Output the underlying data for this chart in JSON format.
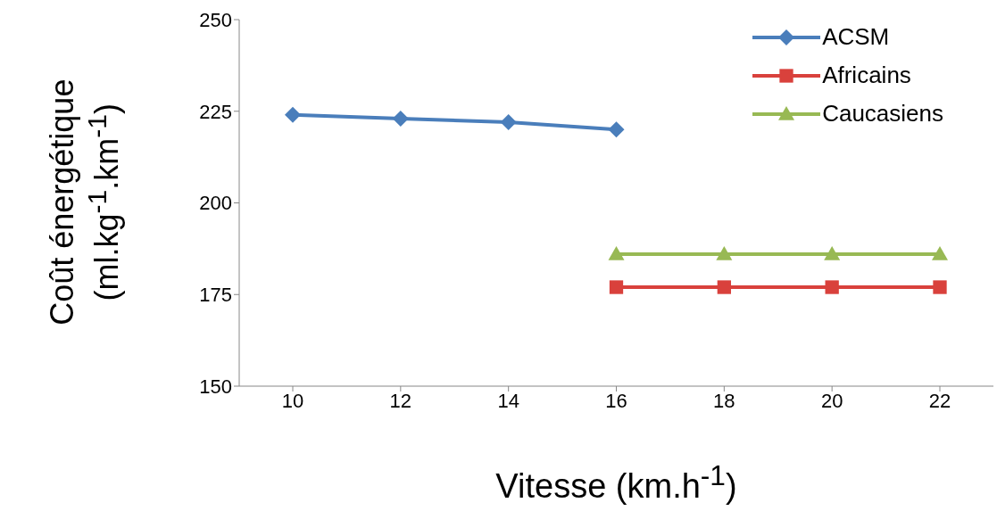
{
  "chart_data": {
    "type": "line",
    "xlabel": "Vitesse (km.h$^{-1}$)",
    "ylabel": "Coût énergétique (ml.kg$^{-1}$.km$^{-1}$)",
    "categories": [
      "10",
      "12",
      "14",
      "16",
      "18",
      "20",
      "22"
    ],
    "series": [
      {
        "name": "ACSM",
        "color": "#4a7ebb",
        "marker": "diamond",
        "values": [
          224,
          223,
          222,
          220,
          null,
          null,
          null
        ]
      },
      {
        "name": "Africains",
        "color": "#d9413c",
        "marker": "square",
        "values": [
          null,
          null,
          null,
          177,
          177,
          177,
          177
        ]
      },
      {
        "name": "Caucasiens",
        "color": "#98b954",
        "marker": "triangle",
        "values": [
          null,
          null,
          null,
          186,
          186,
          186,
          186
        ]
      }
    ],
    "ylim": [
      150,
      250
    ],
    "yticks": [
      150,
      175,
      200,
      225,
      250
    ],
    "grid": false,
    "legend": "top right"
  }
}
